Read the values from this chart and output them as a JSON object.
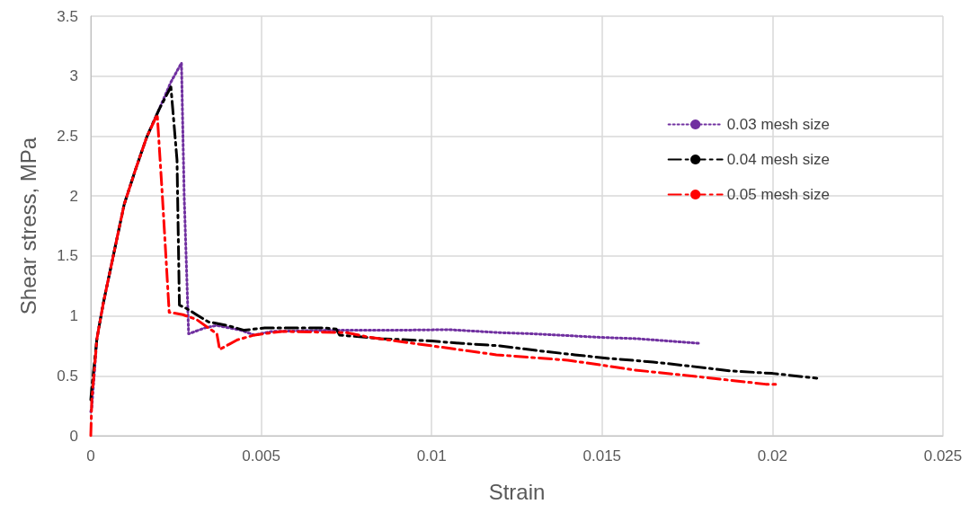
{
  "chart_data": {
    "type": "line",
    "xlabel": "Strain",
    "ylabel": "Shear stress, MPa",
    "xlim": [
      0,
      0.025
    ],
    "xticks": [
      0,
      0.005,
      0.01,
      0.015,
      0.02,
      0.025
    ],
    "ylim": [
      0,
      3.5
    ],
    "yticks": [
      0,
      0.5,
      1,
      1.5,
      2,
      2.5,
      3,
      3.5
    ],
    "grid": true,
    "legend": "top right",
    "marker": "none",
    "series": [
      {
        "name": "0.03 mesh size",
        "color": "#7030a0",
        "line_style": "dotted",
        "x": [
          0,
          3e-05,
          0.00018,
          0.00037,
          0.00063,
          0.00098,
          0.0013,
          0.00164,
          0.002,
          0.00235,
          0.00266,
          0.00274,
          0.00287,
          0.00335,
          0.0037,
          0.0044,
          0.0048,
          0.0053,
          0.007,
          0.009,
          0.0105,
          0.012,
          0.013,
          0.015,
          0.016,
          0.0179
        ],
        "values": [
          0.2,
          0.24,
          0.81,
          1.11,
          1.46,
          1.93,
          2.21,
          2.49,
          2.72,
          2.95,
          3.11,
          2.0,
          0.85,
          0.9,
          0.92,
          0.88,
          0.84,
          0.87,
          0.88,
          0.88,
          0.885,
          0.86,
          0.85,
          0.82,
          0.81,
          0.77
        ]
      },
      {
        "name": "0.04 mesh size",
        "color": "#000000",
        "line_style": "dashed",
        "x": [
          0,
          3e-05,
          0.00018,
          0.00037,
          0.00063,
          0.00098,
          0.0013,
          0.00164,
          0.002,
          0.00235,
          0.00253,
          0.0026,
          0.00282,
          0.0031,
          0.00345,
          0.004,
          0.0045,
          0.0051,
          0.0068,
          0.0072,
          0.0073,
          0.0085,
          0.01,
          0.0109,
          0.012,
          0.0131,
          0.0142,
          0.0152,
          0.0165,
          0.0176,
          0.0188,
          0.02,
          0.0213
        ],
        "values": [
          0.3,
          0.4,
          0.81,
          1.11,
          1.46,
          1.93,
          2.21,
          2.49,
          2.72,
          2.91,
          2.3,
          1.09,
          1.06,
          1.01,
          0.95,
          0.92,
          0.88,
          0.9,
          0.9,
          0.89,
          0.84,
          0.81,
          0.79,
          0.77,
          0.75,
          0.71,
          0.675,
          0.645,
          0.615,
          0.58,
          0.54,
          0.52,
          0.48
        ]
      },
      {
        "name": "0.05 mesh size",
        "color": "#ff0000",
        "line_style": "dashed",
        "x": [
          0,
          3e-05,
          0.00018,
          0.00037,
          0.00063,
          0.00098,
          0.0013,
          0.00164,
          0.00195,
          0.0021,
          0.0023,
          0.0027,
          0.0031,
          0.0037,
          0.00378,
          0.0043,
          0.0048,
          0.0056,
          0.0075,
          0.0082,
          0.01,
          0.0119,
          0.014,
          0.0152,
          0.0159,
          0.0179,
          0.0198,
          0.0202
        ],
        "values": [
          0,
          0.3,
          0.81,
          1.11,
          1.46,
          1.93,
          2.21,
          2.49,
          2.68,
          2.0,
          1.03,
          1.01,
          0.97,
          0.85,
          0.72,
          0.8,
          0.84,
          0.87,
          0.86,
          0.82,
          0.75,
          0.675,
          0.63,
          0.58,
          0.55,
          0.49,
          0.43,
          0.43
        ]
      }
    ]
  }
}
